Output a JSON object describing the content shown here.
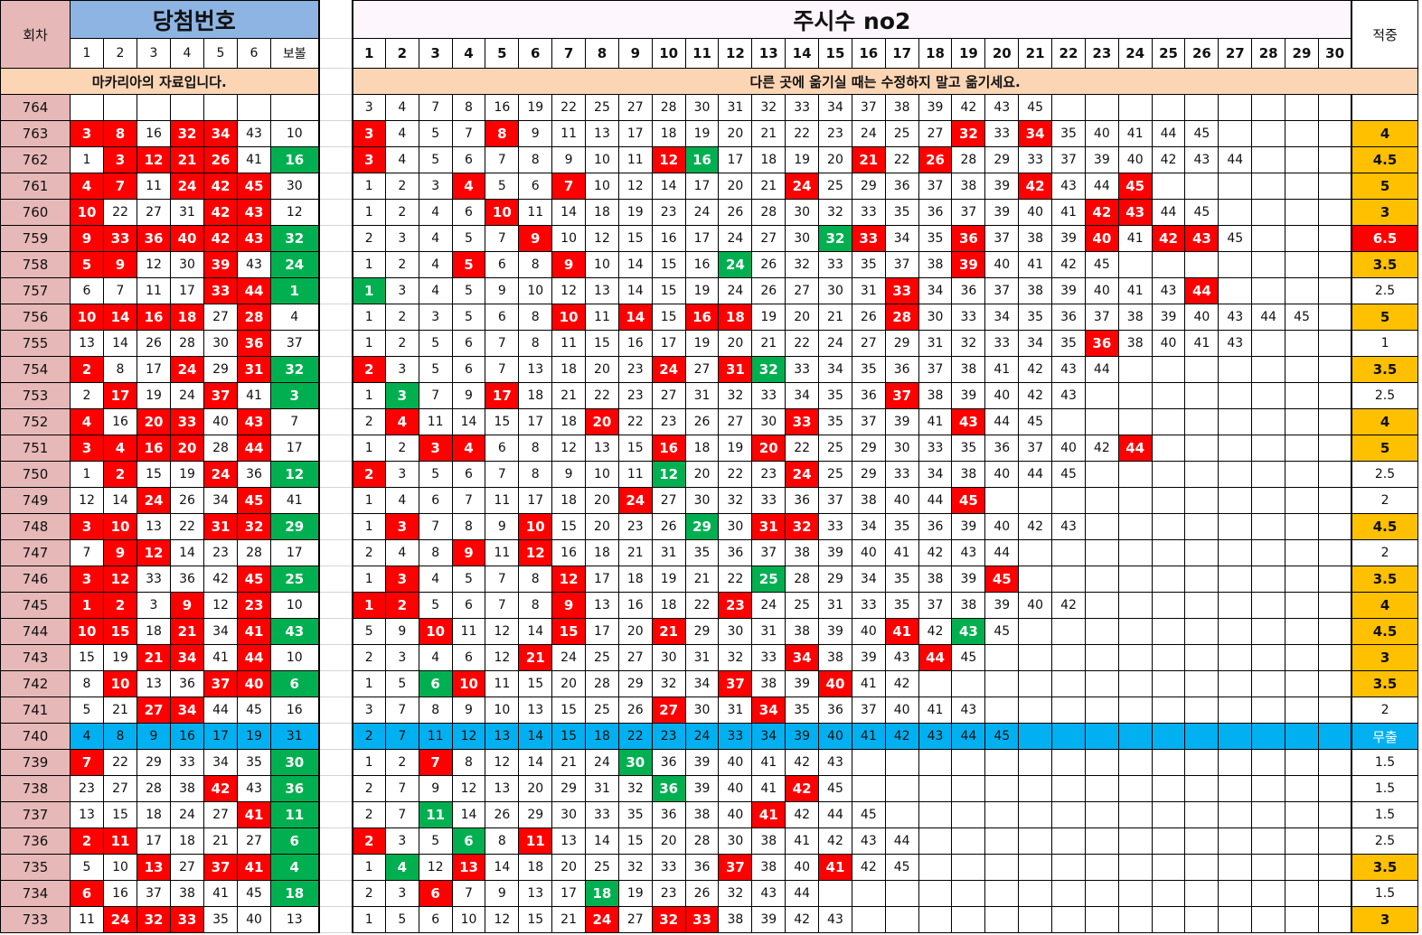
{
  "header": {
    "round_label": "회차",
    "winning_title": "당첨번호",
    "winning_cols": [
      "1",
      "2",
      "3",
      "4",
      "5",
      "6",
      "보볼"
    ],
    "watch_title": "주시수 no2",
    "watch_cols": [
      "1",
      "2",
      "3",
      "4",
      "5",
      "6",
      "7",
      "8",
      "9",
      "10",
      "11",
      "12",
      "13",
      "14",
      "15",
      "16",
      "17",
      "18",
      "19",
      "20",
      "21",
      "22",
      "23",
      "24",
      "25",
      "26",
      "27",
      "28",
      "29",
      "30"
    ],
    "hit_label": "적중",
    "left_banner": "마카리아의 자료입니다.",
    "right_banner": "다른 곳에 옮기실 때는 수정하지 말고 옮기세요."
  },
  "colors": {
    "hit": "#ff0000",
    "bonus": "#00b050",
    "no_hit": "#00b0f0",
    "score_high": "#ffc000",
    "round_bg": "#e6b8b7",
    "title_bg": "#8db4e2",
    "banner_bg": "#fcd5b4"
  },
  "rows": [
    {
      "round": "764",
      "win": [],
      "bonus": null,
      "list": [
        3,
        4,
        7,
        8,
        16,
        19,
        22,
        25,
        27,
        28,
        30,
        31,
        32,
        33,
        34,
        37,
        38,
        39,
        42,
        43,
        45
      ],
      "score": ""
    },
    {
      "round": "763",
      "win": [
        3,
        8,
        16,
        32,
        34,
        43
      ],
      "bonus": 10,
      "list": [
        3,
        4,
        5,
        7,
        8,
        9,
        11,
        13,
        17,
        18,
        19,
        20,
        21,
        22,
        23,
        24,
        25,
        27,
        32,
        33,
        34,
        35,
        40,
        41,
        44,
        45
      ],
      "score": "4"
    },
    {
      "round": "762",
      "win": [
        1,
        3,
        12,
        21,
        26,
        41
      ],
      "bonus": 16,
      "list": [
        3,
        4,
        5,
        6,
        7,
        8,
        9,
        10,
        11,
        12,
        16,
        17,
        18,
        19,
        20,
        21,
        22,
        26,
        28,
        29,
        33,
        37,
        39,
        40,
        42,
        43,
        44
      ],
      "score": "4.5"
    },
    {
      "round": "761",
      "win": [
        4,
        7,
        11,
        24,
        42,
        45
      ],
      "bonus": 30,
      "list": [
        1,
        2,
        3,
        4,
        5,
        6,
        7,
        10,
        12,
        14,
        17,
        20,
        21,
        24,
        25,
        29,
        36,
        37,
        38,
        39,
        42,
        43,
        44,
        45
      ],
      "score": "5"
    },
    {
      "round": "760",
      "win": [
        10,
        22,
        27,
        31,
        42,
        43
      ],
      "bonus": 12,
      "list": [
        1,
        2,
        4,
        6,
        10,
        11,
        14,
        18,
        19,
        23,
        24,
        26,
        28,
        30,
        32,
        33,
        35,
        36,
        37,
        39,
        40,
        41,
        42,
        43,
        44,
        45
      ],
      "score": "3"
    },
    {
      "round": "759",
      "win": [
        9,
        33,
        36,
        40,
        42,
        43
      ],
      "bonus": 32,
      "list": [
        2,
        3,
        4,
        5,
        7,
        9,
        10,
        12,
        15,
        16,
        17,
        24,
        27,
        30,
        32,
        33,
        34,
        35,
        36,
        37,
        38,
        39,
        40,
        41,
        42,
        43,
        45
      ],
      "score": "6.5"
    },
    {
      "round": "758",
      "win": [
        5,
        9,
        12,
        30,
        39,
        43
      ],
      "bonus": 24,
      "list": [
        1,
        2,
        4,
        5,
        6,
        8,
        9,
        10,
        14,
        15,
        16,
        24,
        26,
        32,
        33,
        35,
        37,
        38,
        39,
        40,
        41,
        42,
        45
      ],
      "score": "3.5"
    },
    {
      "round": "757",
      "win": [
        6,
        7,
        11,
        17,
        33,
        44
      ],
      "bonus": 1,
      "list": [
        1,
        3,
        4,
        5,
        9,
        10,
        12,
        13,
        14,
        15,
        19,
        24,
        26,
        27,
        30,
        31,
        33,
        34,
        36,
        37,
        38,
        39,
        40,
        41,
        43,
        44
      ],
      "score": "2.5"
    },
    {
      "round": "756",
      "win": [
        10,
        14,
        16,
        18,
        27,
        28
      ],
      "bonus": 4,
      "list": [
        1,
        2,
        3,
        5,
        6,
        8,
        10,
        11,
        14,
        15,
        16,
        18,
        19,
        20,
        21,
        26,
        28,
        30,
        33,
        34,
        35,
        36,
        37,
        38,
        39,
        40,
        43,
        44,
        45
      ],
      "score": "5"
    },
    {
      "round": "755",
      "win": [
        13,
        14,
        26,
        28,
        30,
        36
      ],
      "bonus": 37,
      "list": [
        1,
        2,
        5,
        6,
        7,
        8,
        11,
        15,
        16,
        17,
        19,
        20,
        21,
        22,
        24,
        27,
        29,
        31,
        32,
        33,
        34,
        35,
        36,
        38,
        40,
        41,
        43
      ],
      "score": "1"
    },
    {
      "round": "754",
      "win": [
        2,
        8,
        17,
        24,
        29,
        31
      ],
      "bonus": 32,
      "list": [
        2,
        3,
        5,
        6,
        7,
        13,
        18,
        20,
        23,
        24,
        27,
        31,
        32,
        33,
        34,
        35,
        36,
        37,
        38,
        41,
        42,
        43,
        44
      ],
      "score": "3.5"
    },
    {
      "round": "753",
      "win": [
        2,
        17,
        19,
        24,
        37,
        41
      ],
      "bonus": 3,
      "list": [
        1,
        3,
        7,
        9,
        17,
        18,
        21,
        22,
        23,
        27,
        31,
        32,
        33,
        34,
        35,
        36,
        37,
        38,
        39,
        40,
        42,
        43
      ],
      "score": "2.5"
    },
    {
      "round": "752",
      "win": [
        4,
        16,
        20,
        33,
        40,
        43
      ],
      "bonus": 7,
      "list": [
        2,
        4,
        11,
        14,
        15,
        17,
        18,
        20,
        22,
        23,
        26,
        27,
        30,
        33,
        35,
        37,
        39,
        41,
        43,
        44,
        45
      ],
      "score": "4"
    },
    {
      "round": "751",
      "win": [
        3,
        4,
        16,
        20,
        28,
        44
      ],
      "bonus": 17,
      "list": [
        1,
        2,
        3,
        4,
        6,
        8,
        12,
        13,
        15,
        16,
        18,
        19,
        20,
        22,
        25,
        29,
        30,
        33,
        35,
        36,
        37,
        40,
        42,
        44
      ],
      "score": "5"
    },
    {
      "round": "750",
      "win": [
        1,
        2,
        15,
        19,
        24,
        36
      ],
      "bonus": 12,
      "list": [
        2,
        3,
        5,
        6,
        7,
        8,
        9,
        10,
        11,
        12,
        20,
        22,
        23,
        24,
        25,
        29,
        33,
        34,
        38,
        40,
        44,
        45
      ],
      "score": "2.5"
    },
    {
      "round": "749",
      "win": [
        12,
        14,
        24,
        26,
        34,
        45
      ],
      "bonus": 41,
      "list": [
        1,
        4,
        6,
        7,
        11,
        17,
        18,
        20,
        24,
        27,
        30,
        32,
        33,
        36,
        37,
        38,
        40,
        44,
        45
      ],
      "score": "2"
    },
    {
      "round": "748",
      "win": [
        3,
        10,
        13,
        22,
        31,
        32
      ],
      "bonus": 29,
      "list": [
        1,
        3,
        7,
        8,
        9,
        10,
        15,
        20,
        23,
        26,
        29,
        30,
        31,
        32,
        33,
        34,
        35,
        36,
        39,
        40,
        42,
        43
      ],
      "score": "4.5"
    },
    {
      "round": "747",
      "win": [
        7,
        9,
        12,
        14,
        23,
        28
      ],
      "bonus": 17,
      "list": [
        2,
        4,
        8,
        9,
        11,
        12,
        16,
        18,
        21,
        31,
        35,
        36,
        37,
        38,
        39,
        40,
        41,
        42,
        43,
        44
      ],
      "score": "2"
    },
    {
      "round": "746",
      "win": [
        3,
        12,
        33,
        36,
        42,
        45
      ],
      "bonus": 25,
      "list": [
        1,
        3,
        4,
        5,
        7,
        8,
        12,
        17,
        18,
        19,
        21,
        22,
        25,
        28,
        29,
        34,
        35,
        38,
        39,
        45
      ],
      "score": "3.5"
    },
    {
      "round": "745",
      "win": [
        1,
        2,
        3,
        9,
        12,
        23
      ],
      "bonus": 10,
      "list": [
        1,
        2,
        5,
        6,
        7,
        8,
        9,
        13,
        16,
        18,
        22,
        23,
        24,
        25,
        31,
        33,
        35,
        37,
        38,
        39,
        40,
        42
      ],
      "score": "4"
    },
    {
      "round": "744",
      "win": [
        10,
        15,
        18,
        21,
        34,
        41
      ],
      "bonus": 43,
      "list": [
        5,
        9,
        10,
        11,
        12,
        14,
        15,
        17,
        20,
        21,
        29,
        30,
        31,
        38,
        39,
        40,
        41,
        42,
        43,
        45
      ],
      "score": "4.5"
    },
    {
      "round": "743",
      "win": [
        15,
        19,
        21,
        34,
        41,
        44
      ],
      "bonus": 10,
      "list": [
        2,
        3,
        4,
        6,
        12,
        21,
        24,
        25,
        27,
        30,
        31,
        32,
        33,
        34,
        38,
        39,
        43,
        44,
        45
      ],
      "score": "3"
    },
    {
      "round": "742",
      "win": [
        8,
        10,
        13,
        36,
        37,
        40
      ],
      "bonus": 6,
      "list": [
        1,
        5,
        6,
        10,
        11,
        15,
        20,
        28,
        29,
        32,
        34,
        37,
        38,
        39,
        40,
        41,
        42
      ],
      "score": "3.5"
    },
    {
      "round": "741",
      "win": [
        5,
        21,
        27,
        34,
        44,
        45
      ],
      "bonus": 16,
      "list": [
        3,
        7,
        8,
        9,
        10,
        13,
        15,
        25,
        26,
        27,
        30,
        31,
        34,
        35,
        36,
        37,
        40,
        41,
        43
      ],
      "score": "2"
    },
    {
      "round": "740",
      "win": [
        4,
        8,
        9,
        16,
        17,
        19
      ],
      "bonus": 31,
      "list": [
        2,
        7,
        11,
        12,
        13,
        14,
        15,
        18,
        22,
        23,
        24,
        33,
        34,
        39,
        40,
        41,
        42,
        43,
        44,
        45
      ],
      "score": "무출",
      "no_hit": true
    },
    {
      "round": "739",
      "win": [
        7,
        22,
        29,
        33,
        34,
        35
      ],
      "bonus": 30,
      "list": [
        1,
        2,
        7,
        8,
        12,
        14,
        21,
        24,
        30,
        36,
        39,
        40,
        41,
        42,
        43
      ],
      "score": "1.5"
    },
    {
      "round": "738",
      "win": [
        23,
        27,
        28,
        38,
        42,
        43
      ],
      "bonus": 36,
      "list": [
        2,
        7,
        9,
        12,
        13,
        20,
        29,
        31,
        32,
        36,
        39,
        40,
        41,
        42,
        45
      ],
      "score": "1.5"
    },
    {
      "round": "737",
      "win": [
        13,
        15,
        18,
        24,
        27,
        41
      ],
      "bonus": 11,
      "list": [
        2,
        7,
        11,
        14,
        26,
        29,
        30,
        33,
        35,
        36,
        38,
        40,
        41,
        42,
        44,
        45
      ],
      "score": "1.5"
    },
    {
      "round": "736",
      "win": [
        2,
        11,
        17,
        18,
        21,
        27
      ],
      "bonus": 6,
      "list": [
        2,
        3,
        5,
        6,
        8,
        11,
        13,
        14,
        15,
        20,
        28,
        30,
        38,
        41,
        42,
        43,
        44
      ],
      "score": "2.5"
    },
    {
      "round": "735",
      "win": [
        5,
        10,
        13,
        27,
        37,
        41
      ],
      "bonus": 4,
      "list": [
        1,
        4,
        12,
        13,
        14,
        18,
        20,
        25,
        32,
        33,
        36,
        37,
        38,
        40,
        41,
        42,
        45
      ],
      "score": "3.5"
    },
    {
      "round": "734",
      "win": [
        6,
        16,
        37,
        38,
        41,
        45
      ],
      "bonus": 18,
      "list": [
        2,
        3,
        6,
        7,
        9,
        13,
        17,
        18,
        19,
        23,
        26,
        32,
        43,
        44
      ],
      "score": "1.5"
    },
    {
      "round": "733",
      "win": [
        11,
        24,
        32,
        33,
        35,
        40
      ],
      "bonus": 13,
      "list": [
        1,
        5,
        6,
        10,
        12,
        15,
        21,
        24,
        27,
        32,
        33,
        38,
        39,
        42,
        43
      ],
      "score": "3"
    }
  ]
}
